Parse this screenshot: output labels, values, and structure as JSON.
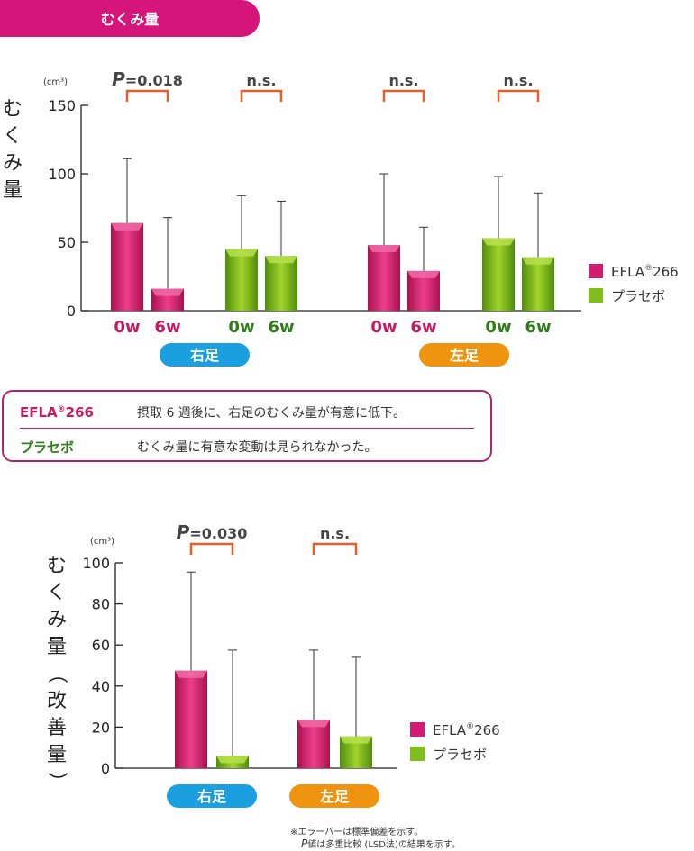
{
  "header": {
    "title": "むくみ量"
  },
  "legend": {
    "efla_name": "EFLA",
    "efla_mark": "®",
    "efla_num": "266",
    "placebo": "プラセボ"
  },
  "colors": {
    "efla": "#d21c6f",
    "placebo": "#7fbf1a",
    "bracket": "#e3602a",
    "right_leg": "#1aa0e0",
    "left_leg": "#f0940f",
    "header": "#d6157a"
  },
  "chart_data": [
    {
      "type": "bar",
      "unit": "(cm³)",
      "ylabel": "むくみ量",
      "ylim": [
        0,
        150
      ],
      "yticks": [
        "0",
        "50",
        "100",
        "150"
      ],
      "groups": [
        {
          "label": "右足",
          "color": "right_leg"
        },
        {
          "label": "左足",
          "color": "left_leg"
        }
      ],
      "categories": [
        "0w",
        "6w",
        "0w",
        "6w",
        "0w",
        "6w",
        "0w",
        "6w"
      ],
      "bars": [
        {
          "series": "EFLA",
          "x": "0w",
          "value": 64,
          "sd_upper": 111
        },
        {
          "series": "EFLA",
          "x": "6w",
          "value": 16,
          "sd_upper": 68
        },
        {
          "series": "プラセボ",
          "x": "0w",
          "value": 45,
          "sd_upper": 84
        },
        {
          "series": "プラセボ",
          "x": "6w",
          "value": 40,
          "sd_upper": 80
        },
        {
          "series": "EFLA",
          "x": "0w",
          "value": 48,
          "sd_upper": 100
        },
        {
          "series": "EFLA",
          "x": "6w",
          "value": 29,
          "sd_upper": 61
        },
        {
          "series": "プラセボ",
          "x": "0w",
          "value": 53,
          "sd_upper": 98
        },
        {
          "series": "プラセボ",
          "x": "6w",
          "value": 39,
          "sd_upper": 86
        }
      ],
      "significance": [
        "P=0.018",
        "n.s.",
        "n.s.",
        "n.s."
      ]
    },
    {
      "type": "bar",
      "unit": "(cm³)",
      "ylabel": "むくみ量（改善量）",
      "ylim": [
        0,
        100
      ],
      "yticks": [
        "0",
        "20",
        "40",
        "60",
        "80",
        "100"
      ],
      "groups": [
        {
          "label": "右足",
          "color": "right_leg"
        },
        {
          "label": "左足",
          "color": "left_leg"
        }
      ],
      "bars": [
        {
          "series": "EFLA",
          "group": "右足",
          "value": 47.5,
          "sd_upper": 95.5
        },
        {
          "series": "プラセボ",
          "group": "右足",
          "value": 6,
          "sd_upper": 57.5
        },
        {
          "series": "EFLA",
          "group": "左足",
          "value": 23.5,
          "sd_upper": 57.5
        },
        {
          "series": "プラセボ",
          "group": "左足",
          "value": 15.5,
          "sd_upper": 54
        }
      ],
      "significance": [
        "P=0.030",
        "n.s."
      ]
    }
  ],
  "summary": {
    "efla_text": "摂取 6 週後に、右足のむくみ量が有意に低下。",
    "placebo_text": "むくみ量に有意な変動は見られなかった。"
  },
  "footnote": {
    "line1": "※エラーバーは標準偏差を示す。",
    "line2": "P値は多重比較 (LSD法)の結果を示す。"
  }
}
